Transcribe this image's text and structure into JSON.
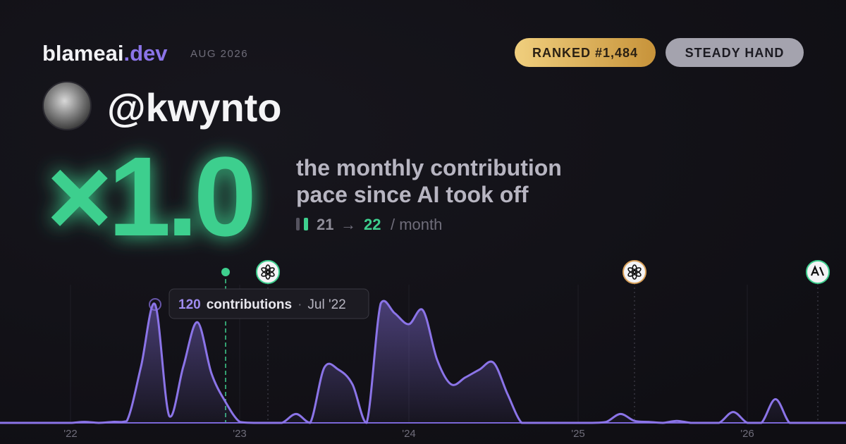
{
  "header": {
    "brand": "blameai",
    "brand_suffix": ".dev",
    "date": "AUG 2026",
    "badges": [
      "RANKED #1,484",
      "STEADY HAND"
    ]
  },
  "user": {
    "handle": "@kwynto"
  },
  "summary": {
    "multiplier": "×1.0",
    "description": [
      "the monthly contribution",
      "pace since AI took off"
    ],
    "pace_before": 21,
    "arrow": "→",
    "pace_after": 22,
    "unit": "/ month"
  },
  "chart_data": {
    "type": "line",
    "x": [
      "2021-08",
      "2021-09",
      "2021-10",
      "2021-11",
      "2021-12",
      "2022-01",
      "2022-02",
      "2022-03",
      "2022-04",
      "2022-05",
      "2022-06",
      "2022-07",
      "2022-08",
      "2022-09",
      "2022-10",
      "2022-11",
      "2022-12",
      "2023-01",
      "2023-02",
      "2023-03",
      "2023-04",
      "2023-05",
      "2023-06",
      "2023-07",
      "2023-08",
      "2023-09",
      "2023-10",
      "2023-11",
      "2023-12",
      "2024-01",
      "2024-02",
      "2024-03",
      "2024-04",
      "2024-05",
      "2024-06",
      "2024-07",
      "2024-08",
      "2024-09",
      "2024-10",
      "2024-11",
      "2024-12",
      "2025-01",
      "2025-02",
      "2025-03",
      "2025-04",
      "2025-05",
      "2025-06",
      "2025-07",
      "2025-08",
      "2025-09",
      "2025-10",
      "2025-11",
      "2025-12",
      "2026-01",
      "2026-02",
      "2026-03",
      "2026-04",
      "2026-05",
      "2026-06",
      "2026-07",
      "2026-08"
    ],
    "series": [
      {
        "name": "contributions",
        "color": "#8b74e8",
        "values": [
          0,
          0,
          0,
          0,
          0,
          0,
          1,
          0,
          1,
          2,
          57,
          120,
          7,
          57,
          102,
          50,
          21,
          1,
          0,
          0,
          0,
          9,
          0,
          56,
          54,
          39,
          0,
          121,
          111,
          100,
          114,
          64,
          39,
          46,
          54,
          61,
          29,
          0,
          0,
          0,
          0,
          0,
          0,
          1,
          9,
          2,
          1,
          0,
          2,
          0,
          0,
          0,
          11,
          0,
          0,
          24,
          0,
          0,
          0,
          0,
          0
        ]
      }
    ],
    "xlim": [
      "2021-08",
      "2026-08"
    ],
    "xticks": [
      {
        "value": "2022-01",
        "label": "'22"
      },
      {
        "value": "2023-01",
        "label": "'23"
      },
      {
        "value": "2024-01",
        "label": "'24"
      },
      {
        "value": "2025-01",
        "label": "'25"
      },
      {
        "value": "2026-01",
        "label": "'26"
      }
    ],
    "ylim": [
      0,
      140
    ],
    "grid": true,
    "tooltip": {
      "x": "2022-07",
      "value": 120,
      "label": "contributions",
      "separator": "·",
      "date": "Jul '22"
    },
    "events": [
      {
        "x": "2022-12",
        "icon": "dot"
      },
      {
        "x": "2023-03",
        "icon": "openai"
      },
      {
        "x": "2025-05",
        "icon": "openai"
      },
      {
        "x": "2026-06",
        "icon": "anthropic"
      }
    ]
  }
}
